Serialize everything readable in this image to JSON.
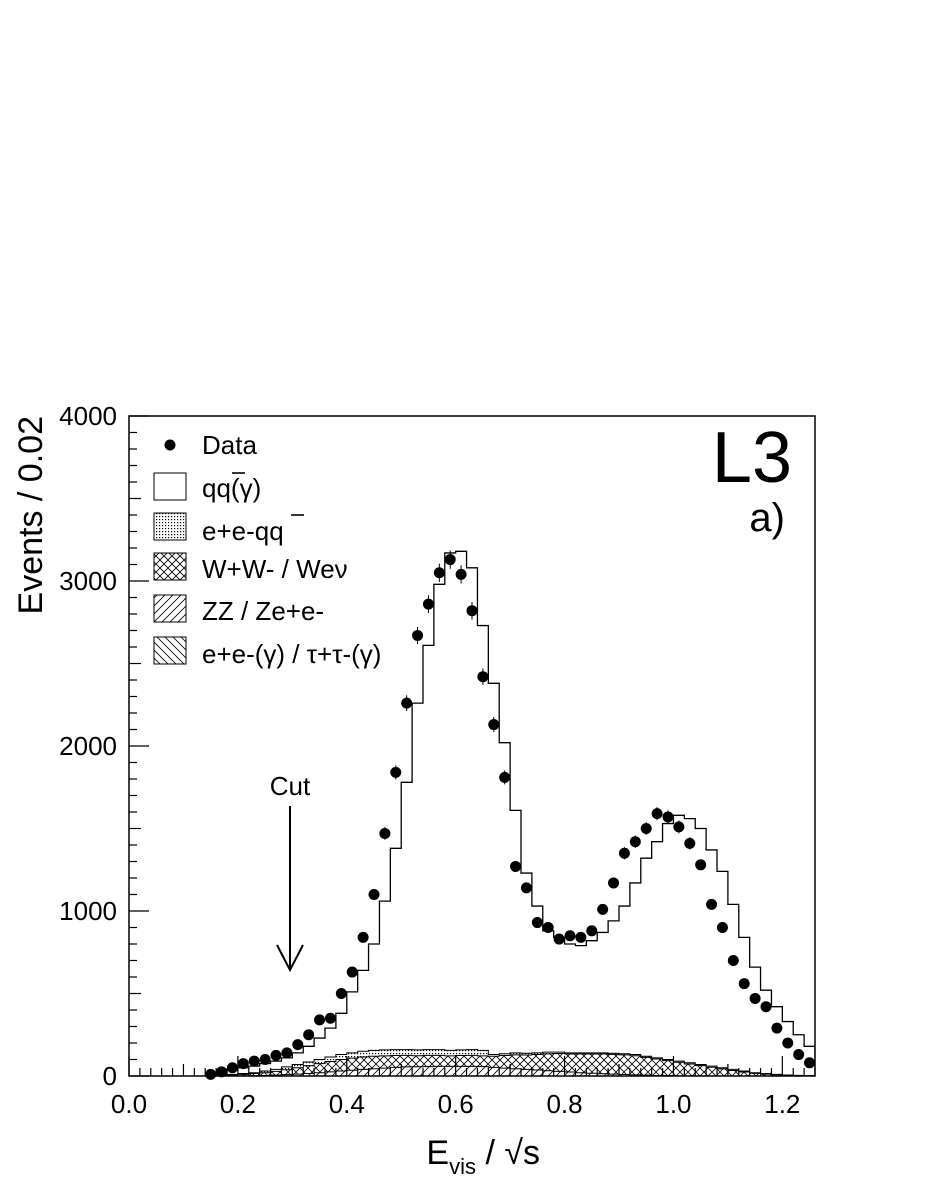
{
  "chart_data": {
    "type": "histogram",
    "xlabel": "E_vis / √s",
    "ylabel": "Events / 0.02",
    "xlim": [
      0,
      1.26
    ],
    "ylim": [
      0,
      4000
    ],
    "x_ticks": [
      "0.0",
      "0.2",
      "0.4",
      "0.6",
      "0.8",
      "1.0",
      "1.2"
    ],
    "y_ticks": [
      "0",
      "1000",
      "2000",
      "3000",
      "4000"
    ],
    "experiment": "L3",
    "panel": "a)",
    "annotation": {
      "text": "Cut",
      "x": 0.3
    },
    "bin_width": 0.02,
    "bin_edges_start": 0.14,
    "legend": [
      {
        "key": "data",
        "label": "Data"
      },
      {
        "key": "qq",
        "label": "qq(γ)"
      },
      {
        "key": "eeqq",
        "label": "e+e-qq"
      },
      {
        "key": "ww",
        "label": "W+W- / Weν"
      },
      {
        "key": "zz",
        "label": "ZZ / Ze+e-"
      },
      {
        "key": "ll",
        "label": "e+e-(γ) / τ+τ-(γ)"
      }
    ],
    "mc_total": [
      10,
      20,
      35,
      50,
      60,
      75,
      90,
      110,
      140,
      180,
      230,
      290,
      380,
      510,
      640,
      800,
      1060,
      1380,
      1780,
      2260,
      2610,
      2980,
      3170,
      3180,
      3080,
      2730,
      2380,
      2020,
      1610,
      1230,
      1030,
      880,
      840,
      800,
      790,
      820,
      870,
      940,
      1030,
      1170,
      1320,
      1420,
      1530,
      1580,
      1560,
      1500,
      1370,
      1240,
      1040,
      840,
      660,
      520,
      420,
      330,
      250,
      180,
      120,
      70
    ],
    "background_total": [
      2,
      5,
      10,
      15,
      20,
      30,
      40,
      55,
      70,
      85,
      100,
      115,
      130,
      140,
      150,
      155,
      158,
      160,
      160,
      158,
      160,
      160,
      155,
      158,
      160,
      155,
      130,
      135,
      140,
      138,
      140,
      145,
      145,
      140,
      140,
      140,
      140,
      138,
      135,
      130,
      120,
      110,
      100,
      90,
      80,
      70,
      60,
      50,
      40,
      30,
      20,
      15,
      10,
      6,
      4,
      2,
      1,
      0
    ],
    "background_ww": [
      1,
      3,
      6,
      10,
      15,
      20,
      28,
      38,
      50,
      62,
      75,
      88,
      100,
      108,
      115,
      120,
      122,
      124,
      125,
      123,
      125,
      125,
      122,
      124,
      125,
      122,
      120,
      124,
      128,
      127,
      130,
      134,
      136,
      133,
      133,
      133,
      133,
      131,
      128,
      123,
      113,
      103,
      93,
      83,
      73,
      63,
      53,
      43,
      33,
      24,
      16,
      11,
      7,
      4,
      2,
      1,
      0,
      0
    ],
    "background_zz": [
      0,
      0,
      0,
      1,
      2,
      3,
      5,
      8,
      11,
      15,
      20,
      25,
      30,
      35,
      40,
      44,
      48,
      52,
      55,
      56,
      57,
      58,
      58,
      58,
      58,
      57,
      52,
      48,
      44,
      40,
      36,
      32,
      28,
      24,
      20,
      17,
      14,
      11,
      9,
      7,
      5,
      3,
      2,
      1,
      1,
      0,
      0,
      0,
      0,
      0,
      0,
      0,
      0,
      0,
      0,
      0,
      0,
      0
    ],
    "data_points": [
      {
        "x": 0.15,
        "y": 10
      },
      {
        "x": 0.17,
        "y": 25
      },
      {
        "x": 0.19,
        "y": 50
      },
      {
        "x": 0.21,
        "y": 75
      },
      {
        "x": 0.23,
        "y": 90
      },
      {
        "x": 0.25,
        "y": 100
      },
      {
        "x": 0.27,
        "y": 125
      },
      {
        "x": 0.29,
        "y": 140
      },
      {
        "x": 0.31,
        "y": 190
      },
      {
        "x": 0.33,
        "y": 250
      },
      {
        "x": 0.35,
        "y": 340
      },
      {
        "x": 0.37,
        "y": 350
      },
      {
        "x": 0.39,
        "y": 500
      },
      {
        "x": 0.41,
        "y": 630
      },
      {
        "x": 0.43,
        "y": 840
      },
      {
        "x": 0.45,
        "y": 1100
      },
      {
        "x": 0.47,
        "y": 1470
      },
      {
        "x": 0.49,
        "y": 1840
      },
      {
        "x": 0.51,
        "y": 2260
      },
      {
        "x": 0.53,
        "y": 2670
      },
      {
        "x": 0.55,
        "y": 2860
      },
      {
        "x": 0.57,
        "y": 3050
      },
      {
        "x": 0.59,
        "y": 3130
      },
      {
        "x": 0.61,
        "y": 3040
      },
      {
        "x": 0.63,
        "y": 2820
      },
      {
        "x": 0.65,
        "y": 2420
      },
      {
        "x": 0.67,
        "y": 2130
      },
      {
        "x": 0.69,
        "y": 1810
      },
      {
        "x": 0.71,
        "y": 1270
      },
      {
        "x": 0.73,
        "y": 1140
      },
      {
        "x": 0.75,
        "y": 930
      },
      {
        "x": 0.77,
        "y": 900
      },
      {
        "x": 0.79,
        "y": 830
      },
      {
        "x": 0.81,
        "y": 850
      },
      {
        "x": 0.83,
        "y": 840
      },
      {
        "x": 0.85,
        "y": 880
      },
      {
        "x": 0.87,
        "y": 1010
      },
      {
        "x": 0.89,
        "y": 1170
      },
      {
        "x": 0.91,
        "y": 1350
      },
      {
        "x": 0.93,
        "y": 1420
      },
      {
        "x": 0.95,
        "y": 1500
      },
      {
        "x": 0.97,
        "y": 1590
      },
      {
        "x": 0.99,
        "y": 1570
      },
      {
        "x": 1.01,
        "y": 1510
      },
      {
        "x": 1.03,
        "y": 1410
      },
      {
        "x": 1.05,
        "y": 1280
      },
      {
        "x": 1.07,
        "y": 1040
      },
      {
        "x": 1.09,
        "y": 900
      },
      {
        "x": 1.11,
        "y": 700
      },
      {
        "x": 1.13,
        "y": 560
      },
      {
        "x": 1.15,
        "y": 470
      },
      {
        "x": 1.17,
        "y": 420
      },
      {
        "x": 1.19,
        "y": 290
      },
      {
        "x": 1.21,
        "y": 200
      },
      {
        "x": 1.23,
        "y": 130
      },
      {
        "x": 1.25,
        "y": 80
      }
    ]
  }
}
